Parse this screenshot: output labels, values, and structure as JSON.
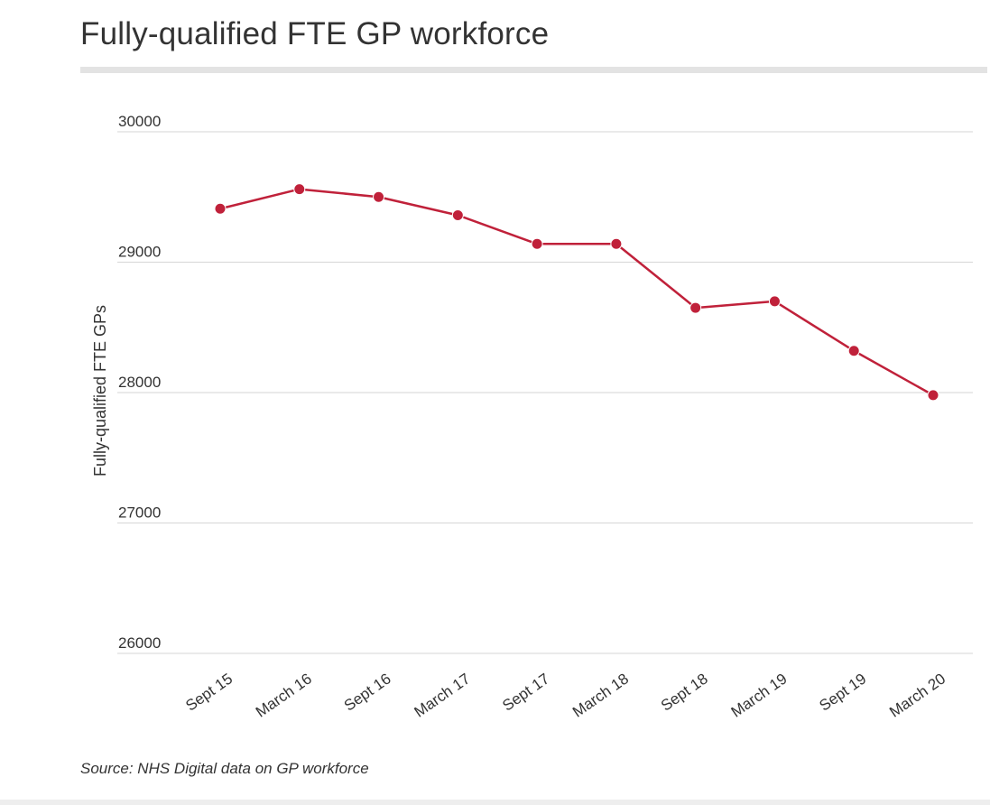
{
  "chart_data": {
    "type": "line",
    "title": "Fully-qualified FTE GP workforce",
    "xlabel": "",
    "ylabel": "Fully-qualified FTE GPs",
    "categories": [
      "Sept 15",
      "March 16",
      "Sept 16",
      "March 17",
      "Sept 17",
      "March 18",
      "Sept 18",
      "March 19",
      "Sept 19",
      "March 20"
    ],
    "series": [
      {
        "name": "Fully-qualified FTE GPs",
        "color": "#c0213a",
        "values": [
          29410,
          29560,
          29500,
          29360,
          29140,
          29140,
          28650,
          28700,
          28320,
          27980
        ]
      }
    ],
    "ylim": [
      26000,
      30000
    ],
    "yticks": [
      26000,
      27000,
      28000,
      29000,
      30000
    ],
    "grid": true,
    "source": "Source: NHS Digital data on GP workforce"
  }
}
